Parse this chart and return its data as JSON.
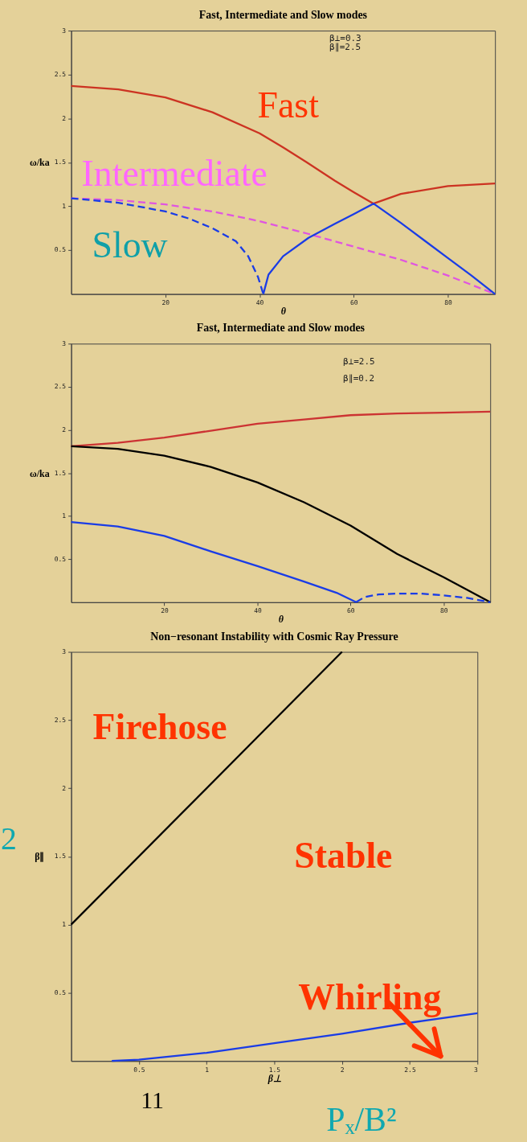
{
  "chart_data": [
    {
      "type": "line",
      "title": "Fast, Intermediate and Slow modes",
      "xlabel": "θ",
      "ylabel": "ω/ka",
      "xlim": [
        0,
        90
      ],
      "ylim": [
        0,
        3
      ],
      "xticks": [
        20,
        40,
        60,
        80
      ],
      "yticks": [
        0.5,
        1,
        1.5,
        2,
        2.5,
        3
      ],
      "annotations": [
        "β⊥=0.3",
        "β∥=2.5"
      ],
      "series": [
        {
          "name": "Fast",
          "color": "#cc3322",
          "x": [
            0,
            10,
            20,
            30,
            40,
            45,
            50,
            56,
            60,
            64.2,
            70,
            80,
            90
          ],
          "values": [
            2.37,
            2.33,
            2.24,
            2.07,
            1.83,
            1.67,
            1.5,
            1.29,
            1.16,
            1.03,
            1.14,
            1.23,
            1.26
          ]
        },
        {
          "name": "Intermediate",
          "color": "#e055e0",
          "line_style": "dashed",
          "x": [
            0,
            10,
            20,
            30,
            40,
            50,
            60,
            70,
            80,
            90
          ],
          "values": [
            1.09,
            1.07,
            1.02,
            0.94,
            0.83,
            0.69,
            0.54,
            0.39,
            0.21,
            0
          ]
        },
        {
          "name": "Slow",
          "color": "#1a3ce6",
          "line_style": "dashed",
          "x": [
            0,
            10,
            20,
            25,
            30,
            35,
            37.6,
            39.7,
            40.8
          ],
          "values": [
            1.09,
            1.04,
            0.94,
            0.86,
            0.75,
            0.6,
            0.43,
            0.19,
            0
          ]
        },
        {
          "color": "#1a3ce6",
          "x": [
            40.8,
            41.9,
            45,
            50.4,
            56,
            60,
            64.2,
            70,
            75,
            80,
            85,
            90
          ],
          "values": [
            0,
            0.22,
            0.43,
            0.64,
            0.8,
            0.91,
            1.03,
            0.81,
            0.61,
            0.41,
            0.21,
            0
          ]
        }
      ]
    },
    {
      "type": "line",
      "title": "Fast, Intermediate and Slow modes",
      "xlabel": "θ",
      "ylabel": "ω/ka",
      "xlim": [
        0,
        90
      ],
      "ylim": [
        0,
        3
      ],
      "xticks": [
        20,
        40,
        60,
        80
      ],
      "yticks": [
        0.5,
        1,
        1.5,
        2,
        2.5,
        3
      ],
      "annotations": [
        "β⊥=2.5",
        "β∥=0.2"
      ],
      "series": [
        {
          "color": "#cc3333",
          "x": [
            0,
            10,
            20,
            30,
            40,
            50,
            60,
            70,
            80,
            90
          ],
          "values": [
            1.81,
            1.85,
            1.91,
            1.99,
            2.07,
            2.12,
            2.17,
            2.19,
            2.2,
            2.21
          ]
        },
        {
          "color": "#000000",
          "x": [
            0,
            10,
            20,
            30,
            40,
            50,
            60,
            70,
            80,
            90
          ],
          "values": [
            1.81,
            1.78,
            1.7,
            1.57,
            1.39,
            1.16,
            0.89,
            0.56,
            0.29,
            0
          ]
        },
        {
          "color": "#1a3ce6",
          "x": [
            0,
            10,
            20,
            30,
            40,
            50,
            57,
            61.2
          ],
          "values": [
            0.93,
            0.88,
            0.77,
            0.59,
            0.42,
            0.24,
            0.11,
            0
          ]
        },
        {
          "color": "#1a3ce6",
          "line_style": "dashed",
          "x": [
            61.2,
            63,
            66,
            70,
            75,
            80,
            85,
            90
          ],
          "values": [
            0,
            0.06,
            0.09,
            0.1,
            0.1,
            0.08,
            0.05,
            0
          ]
        }
      ]
    },
    {
      "type": "line",
      "title": "Non−resonant Instability with Cosmic Ray Pressure",
      "xlabel": "β⊥",
      "ylabel": "β∥",
      "xlim": [
        0,
        3
      ],
      "ylim": [
        0,
        3
      ],
      "xticks": [
        0.5,
        1,
        1.5,
        2,
        2.5,
        3
      ],
      "yticks": [
        0.5,
        1,
        1.5,
        2,
        2.5,
        3
      ],
      "annotations": [
        "Firehose",
        "Stable",
        "Whirling",
        "2",
        "11",
        "Pₓ/B²"
      ],
      "series": [
        {
          "color": "#000000",
          "x": [
            0,
            2
          ],
          "values": [
            1,
            3
          ]
        },
        {
          "color": "#1a3ce6",
          "x": [
            0.3,
            0.5,
            1,
            1.5,
            2,
            2.5,
            3
          ],
          "values": [
            0,
            0.01,
            0.06,
            0.13,
            0.2,
            0.28,
            0.35
          ]
        }
      ]
    }
  ]
}
